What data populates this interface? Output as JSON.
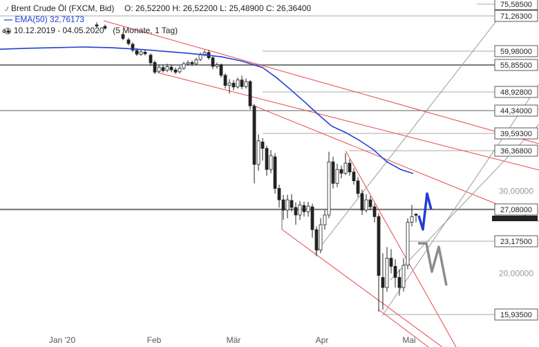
{
  "header": {
    "instrument": "Brent Crude Öl (FXCM, Bid)",
    "ohlc": "O: 26,52200   H: 26,52200   L: 25,48900   C: 26,36400",
    "ema_label": "EMA(50)",
    "ema_value": "32,76173",
    "range": "10.12.2019 - 04.05.2020",
    "period": "(5 Monate, 1 Tag)"
  },
  "chart_data": {
    "type": "candlestick",
    "title": "",
    "xlabel": "",
    "ylabel": "",
    "x_tick_labels": [
      "Jan '20",
      "Feb",
      "Mär",
      "Apr",
      "Mai"
    ],
    "price_levels": [
      {
        "label": "75,58500",
        "value": 75.585
      },
      {
        "label": "71,26300",
        "value": 71.263
      },
      {
        "label": "59,98000",
        "value": 59.98
      },
      {
        "label": "55,85500",
        "value": 55.855
      },
      {
        "label": "48,92800",
        "value": 48.928
      },
      {
        "label": "44,34000",
        "value": 44.34
      },
      {
        "label": "39,59300",
        "value": 39.593
      },
      {
        "label": "36,36800",
        "value": 36.368
      },
      {
        "label": "27,08000",
        "value": 27.08
      },
      {
        "label": "23,17500",
        "value": 23.175
      },
      {
        "label": "15,93500",
        "value": 15.935
      }
    ],
    "grey_ticks": [
      {
        "label": "30,00000",
        "value": 30
      },
      {
        "label": "20,00000",
        "value": 20
      }
    ],
    "last_price": 26.364,
    "ema_value": 32.76173,
    "ema_color": "#1f3fd6",
    "channel_color": "#e8444a",
    "fan_color": "#999999",
    "arrow_color": "#1f3fd6"
  }
}
